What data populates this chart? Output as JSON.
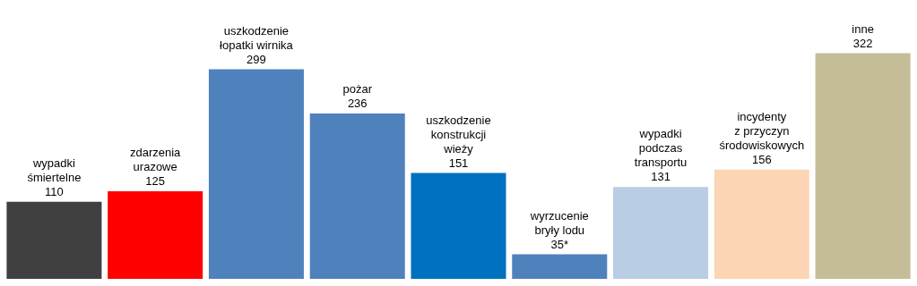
{
  "chart_data": {
    "type": "bar",
    "categories": [
      "wypadki\nśmiertelne",
      "zdarzenia\nurazowe",
      "uszkodzenie\nłopatki wirnika",
      "pożar",
      "uszkodzenie\nkonstrukcji\nwieży",
      "wyrzucenie\nbryły lodu",
      "wypadki\npodczas\ntransportu",
      "incydenty\nz przyczyn\nśrodowiskowych",
      "inne"
    ],
    "values": [
      110,
      125,
      299,
      236,
      151,
      35,
      131,
      156,
      322
    ],
    "value_labels": [
      "110",
      "125",
      "299",
      "236",
      "151",
      "35*",
      "131",
      "156",
      "322"
    ],
    "colors": [
      "#404040",
      "#ff0000",
      "#4f81bd",
      "#4f81bd",
      "#0070c0",
      "#4f81bd",
      "#b9cde5",
      "#fcd5b5",
      "#c4bd97"
    ],
    "grid": false,
    "legend": false
  }
}
